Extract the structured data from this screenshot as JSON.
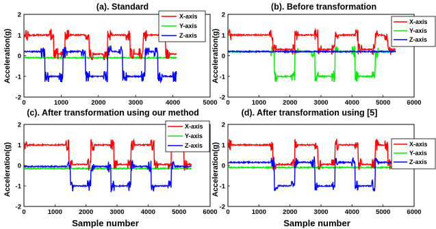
{
  "chart_data": [
    {
      "type": "line",
      "title": "(a). Standard",
      "xlabel": "",
      "ylabel": "Acceleration(g)",
      "xlim": [
        0,
        5000
      ],
      "ylim": [
        -2,
        2
      ],
      "xticks": [
        "0",
        "1000",
        "2000",
        "3000",
        "4000",
        "5000"
      ],
      "yticks": [
        "2",
        "1",
        "0",
        "-1",
        "-2"
      ],
      "legend": [
        "X-axis",
        "Y-axis",
        "Z-axis"
      ],
      "legend_position": "top-right",
      "colors": [
        "#ff0000",
        "#00ee00",
        "#0000ff"
      ],
      "n_samples": 4100,
      "x_pattern": {
        "high": 1,
        "low": 0.08,
        "high_ranges": [
          [
            0,
            800
          ],
          [
            1100,
            1750
          ],
          [
            2250,
            2850
          ],
          [
            3200,
            3800
          ]
        ]
      },
      "y_pattern": {
        "base": -0.1
      },
      "z_pattern": {
        "base": 0.2,
        "low": -1,
        "low_ranges": [
          [
            560,
            1050
          ],
          [
            1650,
            2250
          ],
          [
            2650,
            3250
          ],
          [
            3600,
            4100
          ]
        ]
      },
      "series": [
        {
          "name": "X-axis",
          "values": "square wave approx. 1 g / 0.05 g"
        },
        {
          "name": "Y-axis",
          "values": "approx. -0.1 g with bursts"
        },
        {
          "name": "Z-axis",
          "values": "square wave approx. 0.2 g / -1 g"
        }
      ]
    },
    {
      "type": "line",
      "title": "(b). Before transformation",
      "xlabel": "",
      "ylabel": "Acceleration(g)",
      "xlim": [
        0,
        6000
      ],
      "ylim": [
        -2,
        2
      ],
      "xticks": [
        "0",
        "1000",
        "2000",
        "3000",
        "4000",
        "5000",
        "6000"
      ],
      "yticks": [
        "2",
        "1",
        "0",
        "-1",
        "-2"
      ],
      "legend": [
        "X-axis",
        "Y-axis",
        "Z-axis"
      ],
      "legend_position": "top-right",
      "colors": [
        "#ff0000",
        "#00ee00",
        "#0000ff"
      ],
      "n_samples": 5400,
      "x_pattern": {
        "high": 1,
        "low": 0.3,
        "high_ranges": [
          [
            0,
            1450
          ],
          [
            2150,
            2900
          ],
          [
            3450,
            4200
          ],
          [
            4750,
            5150
          ]
        ]
      },
      "y_pattern": {
        "base": 0.2,
        "low": -1,
        "low_ranges": [
          [
            1500,
            2150
          ],
          [
            2800,
            3450
          ],
          [
            4100,
            4750
          ]
        ]
      },
      "z_pattern": {
        "base": 0.2
      }
    },
    {
      "type": "line",
      "title": "(c). After transformation using our method",
      "xlabel": "Sample number",
      "ylabel": "Acceleration(g)",
      "xlim": [
        0,
        6000
      ],
      "ylim": [
        -2,
        2
      ],
      "xticks": [
        "0",
        "1000",
        "2000",
        "3000",
        "4000",
        "5000",
        "6000"
      ],
      "yticks": [
        "2",
        "1",
        "0",
        "-1",
        "-2"
      ],
      "legend": [
        "X-axis",
        "Y-axis",
        "Z-axis"
      ],
      "legend_position": "top-right",
      "colors": [
        "#ff0000",
        "#00ee00",
        "#0000ff"
      ],
      "n_samples": 5400,
      "x_pattern": {
        "high": 1,
        "low": 0.05,
        "high_ranges": [
          [
            0,
            1450
          ],
          [
            2150,
            2900
          ],
          [
            3450,
            4200
          ],
          [
            4750,
            5150
          ]
        ]
      },
      "y_pattern": {
        "base": -0.15
      },
      "z_pattern": {
        "base": -0.05,
        "low": -1,
        "low_ranges": [
          [
            1500,
            2150
          ],
          [
            2800,
            3450
          ],
          [
            4100,
            4750
          ]
        ]
      }
    },
    {
      "type": "line",
      "title": "(d). After transformation using [5]",
      "xlabel": "Sample number",
      "ylabel": "Acceleration(g)",
      "xlim": [
        0,
        6000
      ],
      "ylim": [
        -2,
        2
      ],
      "xticks": [
        "0",
        "1000",
        "2000",
        "3000",
        "4000",
        "5000",
        "6000"
      ],
      "yticks": [
        "2",
        "1",
        "0",
        "-1",
        "-2"
      ],
      "legend": [
        "X-axis",
        "Y-axis",
        "Z-axis"
      ],
      "legend_position": "top-right",
      "colors": [
        "#ff0000",
        "#00ee00",
        "#0000ff"
      ],
      "n_samples": 5400,
      "x_pattern": {
        "high": 1,
        "low": 0.05,
        "high_ranges": [
          [
            0,
            1450
          ],
          [
            2150,
            2900
          ],
          [
            3450,
            4200
          ],
          [
            4750,
            5150
          ]
        ]
      },
      "y_pattern": {
        "base": -0.1
      },
      "z_pattern": {
        "base": 0.15,
        "low": -1,
        "low_ranges": [
          [
            1500,
            2150
          ],
          [
            2800,
            3450
          ],
          [
            4100,
            4750
          ]
        ]
      }
    }
  ]
}
